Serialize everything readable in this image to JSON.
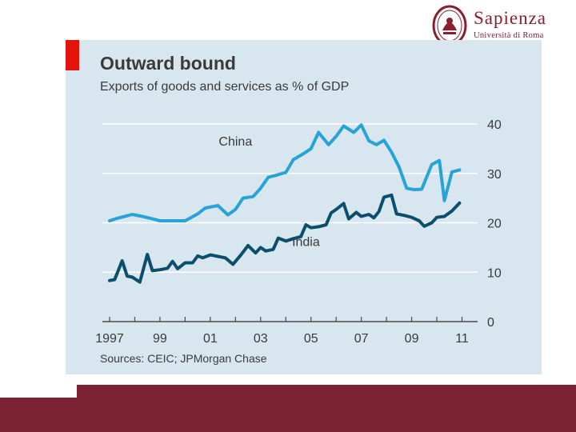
{
  "logo": {
    "name": "Sapienza",
    "subtitle": "Università di Roma",
    "seal_color": "#8a1d2e"
  },
  "footer": {
    "color": "#7d2233"
  },
  "chart_data": {
    "type": "line",
    "title": "Outward bound",
    "subtitle": "Exports of goods and services as % of GDP",
    "source": "Sources: CEIC; JPMorgan Chase",
    "xlabel": "",
    "ylabel": "",
    "xlim": [
      1997,
      2011.4
    ],
    "ylim": [
      0,
      40
    ],
    "y_ticks": [
      0,
      10,
      20,
      30,
      40
    ],
    "y_tick_side": "right",
    "x_ticks": [
      {
        "value": 1997,
        "label": "1997"
      },
      {
        "value": 1999,
        "label": "99"
      },
      {
        "value": 2001,
        "label": "01"
      },
      {
        "value": 2003,
        "label": "03"
      },
      {
        "value": 2005,
        "label": "05"
      },
      {
        "value": 2007,
        "label": "07"
      },
      {
        "value": 2009,
        "label": "09"
      },
      {
        "value": 2011,
        "label": "11"
      }
    ],
    "grid": true,
    "series": [
      {
        "name": "China",
        "color": "#27a3d8",
        "label_pos": {
          "x": 2002.0,
          "y": 35.6
        },
        "points": [
          [
            1997.0,
            20.4
          ],
          [
            1997.3,
            20.9
          ],
          [
            1997.6,
            21.3
          ],
          [
            1997.9,
            21.7
          ],
          [
            1998.3,
            21.3
          ],
          [
            1998.7,
            20.8
          ],
          [
            1999.0,
            20.4
          ],
          [
            1999.5,
            20.4
          ],
          [
            2000.0,
            20.4
          ],
          [
            2000.5,
            21.8
          ],
          [
            2000.8,
            23.0
          ],
          [
            2001.3,
            23.5
          ],
          [
            2001.7,
            21.6
          ],
          [
            2002.0,
            22.7
          ],
          [
            2002.3,
            25.0
          ],
          [
            2002.7,
            25.3
          ],
          [
            2003.0,
            27.0
          ],
          [
            2003.3,
            29.2
          ],
          [
            2003.6,
            29.6
          ],
          [
            2004.0,
            30.2
          ],
          [
            2004.3,
            32.8
          ],
          [
            2004.7,
            34.0
          ],
          [
            2005.0,
            35.0
          ],
          [
            2005.3,
            38.3
          ],
          [
            2005.7,
            35.8
          ],
          [
            2006.0,
            37.5
          ],
          [
            2006.3,
            39.6
          ],
          [
            2006.7,
            38.3
          ],
          [
            2007.0,
            39.8
          ],
          [
            2007.3,
            36.6
          ],
          [
            2007.6,
            35.8
          ],
          [
            2007.9,
            36.7
          ],
          [
            2008.2,
            34.3
          ],
          [
            2008.5,
            31.3
          ],
          [
            2008.8,
            27.0
          ],
          [
            2009.1,
            26.7
          ],
          [
            2009.4,
            26.8
          ],
          [
            2009.8,
            31.8
          ],
          [
            2010.1,
            32.6
          ],
          [
            2010.3,
            24.5
          ],
          [
            2010.6,
            30.3
          ],
          [
            2010.9,
            30.7
          ]
        ]
      },
      {
        "name": "India",
        "color": "#0b4f6c",
        "label_pos": {
          "x": 2004.8,
          "y": 15.3
        },
        "points": [
          [
            1997.0,
            8.3
          ],
          [
            1997.2,
            8.5
          ],
          [
            1997.5,
            12.3
          ],
          [
            1997.7,
            9.2
          ],
          [
            1997.9,
            9.0
          ],
          [
            1998.2,
            8.0
          ],
          [
            1998.5,
            13.6
          ],
          [
            1998.7,
            10.3
          ],
          [
            1999.0,
            10.5
          ],
          [
            1999.3,
            10.8
          ],
          [
            1999.5,
            12.2
          ],
          [
            1999.7,
            10.7
          ],
          [
            2000.0,
            11.9
          ],
          [
            2000.3,
            11.9
          ],
          [
            2000.5,
            13.3
          ],
          [
            2000.7,
            12.9
          ],
          [
            2001.0,
            13.5
          ],
          [
            2001.3,
            13.2
          ],
          [
            2001.6,
            12.9
          ],
          [
            2001.9,
            11.6
          ],
          [
            2002.2,
            13.4
          ],
          [
            2002.5,
            15.4
          ],
          [
            2002.8,
            13.9
          ],
          [
            2003.0,
            15.0
          ],
          [
            2003.2,
            14.3
          ],
          [
            2003.5,
            14.6
          ],
          [
            2003.7,
            16.9
          ],
          [
            2004.0,
            16.3
          ],
          [
            2004.3,
            16.8
          ],
          [
            2004.6,
            17.2
          ],
          [
            2004.8,
            19.6
          ],
          [
            2005.0,
            19.0
          ],
          [
            2005.3,
            19.2
          ],
          [
            2005.6,
            19.6
          ],
          [
            2005.8,
            22.0
          ],
          [
            2006.0,
            22.7
          ],
          [
            2006.3,
            23.9
          ],
          [
            2006.5,
            20.8
          ],
          [
            2006.8,
            22.1
          ],
          [
            2007.0,
            21.3
          ],
          [
            2007.3,
            21.7
          ],
          [
            2007.5,
            21.0
          ],
          [
            2007.7,
            22.3
          ],
          [
            2007.9,
            25.2
          ],
          [
            2008.2,
            25.6
          ],
          [
            2008.4,
            21.8
          ],
          [
            2008.7,
            21.5
          ],
          [
            2009.0,
            21.1
          ],
          [
            2009.3,
            20.4
          ],
          [
            2009.5,
            19.3
          ],
          [
            2009.8,
            20.0
          ],
          [
            2010.0,
            21.1
          ],
          [
            2010.3,
            21.3
          ],
          [
            2010.6,
            22.4
          ],
          [
            2010.9,
            24.0
          ]
        ]
      }
    ]
  }
}
